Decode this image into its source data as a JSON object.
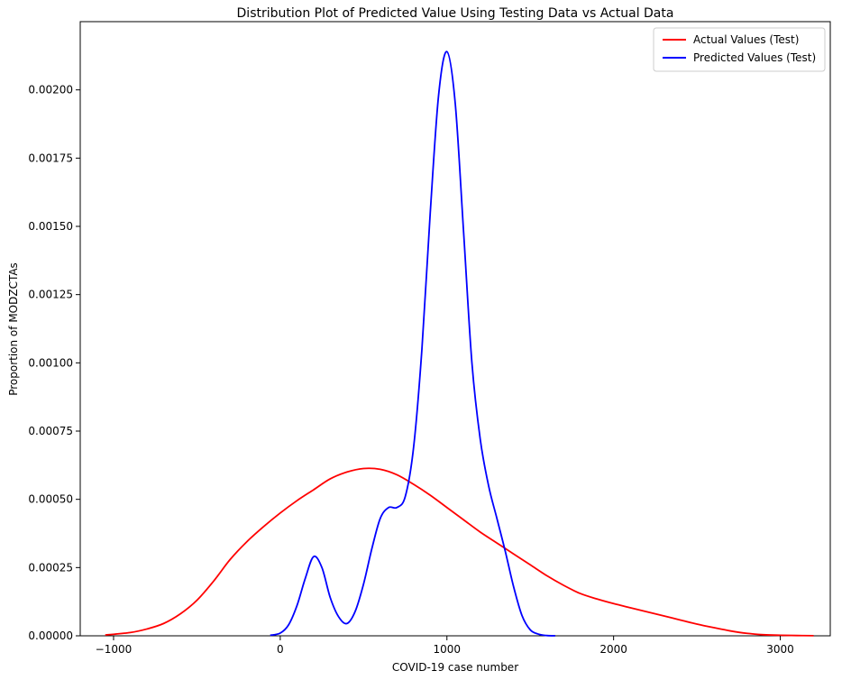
{
  "chart_data": {
    "type": "line",
    "title": "Distribution Plot of Predicted Value Using Testing Data vs Actual Data",
    "xlabel": "COVID-19 case number",
    "ylabel": "Proportion of MODZCTAs",
    "xlim": [
      -1200,
      3300
    ],
    "ylim": [
      0,
      0.00225
    ],
    "xticks": [
      -1000,
      0,
      1000,
      2000,
      3000
    ],
    "xtick_labels": [
      "−1000",
      "0",
      "1000",
      "2000",
      "3000"
    ],
    "yticks": [
      0,
      0.00025,
      0.0005,
      0.00075,
      0.001,
      0.00125,
      0.0015,
      0.00175,
      0.002
    ],
    "ytick_labels": [
      "0.00000",
      "0.00025",
      "0.00050",
      "0.00075",
      "0.00100",
      "0.00125",
      "0.00150",
      "0.00175",
      "0.00200"
    ],
    "grid": false,
    "legend_position": "top-right",
    "series": [
      {
        "name": "Actual Values (Test)",
        "color": "#ff0000",
        "x": [
          -1050,
          -900,
          -800,
          -700,
          -600,
          -500,
          -400,
          -300,
          -200,
          -100,
          0,
          100,
          200,
          300,
          400,
          500,
          600,
          700,
          800,
          900,
          1000,
          1100,
          1200,
          1300,
          1400,
          1500,
          1600,
          1700,
          1800,
          1900,
          2000,
          2100,
          2200,
          2300,
          2400,
          2500,
          2600,
          2700,
          2800,
          2900,
          3000,
          3100,
          3200
        ],
        "y": [
          3e-06,
          1.2e-05,
          2.5e-05,
          4.5e-05,
          8e-05,
          0.00013,
          0.0002,
          0.00028,
          0.000345,
          0.0004,
          0.00045,
          0.000495,
          0.000535,
          0.000575,
          0.0006,
          0.000613,
          0.00061,
          0.00059,
          0.000555,
          0.000515,
          0.00047,
          0.000425,
          0.00038,
          0.00034,
          0.0003,
          0.00026,
          0.00022,
          0.000185,
          0.000155,
          0.000135,
          0.000118,
          0.000103,
          8.8e-05,
          7.3e-05,
          5.8e-05,
          4.3e-05,
          3e-05,
          1.8e-05,
          9e-06,
          4e-06,
          2e-06,
          1e-06,
          5e-07
        ]
      },
      {
        "name": "Predicted Values (Test)",
        "color": "#0000ff",
        "x": [
          -60,
          0,
          50,
          100,
          150,
          200,
          250,
          300,
          350,
          400,
          450,
          500,
          550,
          600,
          650,
          700,
          750,
          800,
          850,
          900,
          950,
          1000,
          1050,
          1100,
          1150,
          1200,
          1250,
          1300,
          1350,
          1400,
          1450,
          1500,
          1550,
          1600,
          1650
        ],
        "y": [
          2e-06,
          1e-05,
          4e-05,
          0.00011,
          0.00021,
          0.00029,
          0.00025,
          0.00014,
          7e-05,
          4.5e-05,
          9e-05,
          0.00019,
          0.00032,
          0.00043,
          0.00047,
          0.00047,
          0.00051,
          0.00069,
          0.00105,
          0.00155,
          0.00198,
          0.00214,
          0.00195,
          0.00148,
          0.001,
          0.00072,
          0.00055,
          0.00043,
          0.00031,
          0.00018,
          7.5e-05,
          2.2e-05,
          6e-06,
          1e-06,
          2e-07
        ]
      }
    ]
  }
}
